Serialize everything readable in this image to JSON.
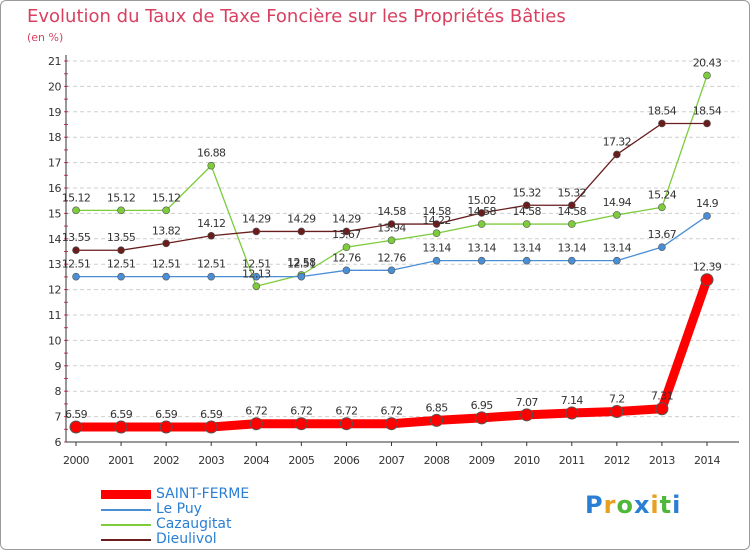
{
  "chart_data": {
    "type": "line",
    "title": "Evolution du Taux de Taxe Foncière sur les Propriétés Bâties",
    "unit_label": "(en %)",
    "x": [
      "2000",
      "2001",
      "2002",
      "2003",
      "2004",
      "2005",
      "2006",
      "2007",
      "2008",
      "2009",
      "2010",
      "2011",
      "2012",
      "2013",
      "2014"
    ],
    "ylim": [
      6,
      21
    ],
    "yticks": [
      6,
      7,
      8,
      9,
      10,
      11,
      12,
      13,
      14,
      15,
      16,
      17,
      18,
      19,
      20,
      21
    ],
    "grid": "horizontal-dashed",
    "legend_position": "bottom-left",
    "series": [
      {
        "name": "SAINT-FERME",
        "color": "#ff0000",
        "values": [
          6.59,
          6.59,
          6.59,
          6.59,
          6.72,
          6.72,
          6.72,
          6.72,
          6.85,
          6.95,
          7.07,
          7.14,
          7.2,
          7.31,
          12.39
        ],
        "labels": [
          "6.59",
          "6.59",
          "6.59",
          "6.59",
          "6.72",
          "6.72",
          "6.72",
          "6.72",
          "6.85",
          "6.95",
          "7.07",
          "7.14",
          "7.2",
          "7.31",
          "12.39"
        ]
      },
      {
        "name": "Le Puy",
        "color": "#4a8fd6",
        "values": [
          12.51,
          12.51,
          12.51,
          12.51,
          12.51,
          12.51,
          12.76,
          12.76,
          13.14,
          13.14,
          13.14,
          13.14,
          13.14,
          13.67,
          14.9
        ],
        "labels": [
          "12.51",
          "12.51",
          "12.51",
          "12.51",
          "12.51",
          "12.51",
          "12.76",
          "12.76",
          "13.14",
          "13.14",
          "13.14",
          "13.14",
          "13.14",
          "13.67",
          "14.9"
        ]
      },
      {
        "name": "Cazaugitat",
        "color": "#7dcc3c",
        "values": [
          15.12,
          15.12,
          15.12,
          16.88,
          12.13,
          12.58,
          13.67,
          13.94,
          14.22,
          14.58,
          14.58,
          14.58,
          14.94,
          15.24,
          20.43
        ],
        "labels": [
          "15.12",
          "15.12",
          "15.12",
          "16.88",
          "12.13",
          "12.58",
          "13.67",
          "13.94",
          "14.22",
          "14.58",
          "14.58",
          "14.58",
          "14.94",
          "15.24",
          "20.43"
        ]
      },
      {
        "name": "Dieulivol",
        "color": "#6a1d1d",
        "values": [
          13.55,
          13.55,
          13.82,
          14.12,
          14.29,
          14.29,
          14.29,
          14.58,
          14.58,
          15.02,
          15.32,
          15.32,
          17.32,
          18.54,
          18.54
        ],
        "labels": [
          "13.55",
          "13.55",
          "13.82",
          "14.12",
          "14.29",
          "14.29",
          "14.29",
          "14.58",
          "14.58",
          "15.02",
          "15.32",
          "15.32",
          "17.32",
          "18.54",
          "18.54"
        ]
      }
    ]
  },
  "legend": {
    "items": [
      {
        "label": "SAINT-FERME",
        "color": "#ff0000"
      },
      {
        "label": "Le Puy",
        "color": "#4a8fd6"
      },
      {
        "label": "Cazaugitat",
        "color": "#7dcc3c"
      },
      {
        "label": "Dieulivol",
        "color": "#6a1d1d"
      }
    ]
  },
  "logo": {
    "letters": [
      "P",
      "r",
      "o",
      "x",
      "i",
      "t",
      "i"
    ],
    "colors": [
      "#2a7fd4",
      "#e8a020",
      "#4fb83a",
      "#2a7fd4",
      "#e8a020",
      "#4fb83a",
      "#2a7fd4"
    ]
  }
}
